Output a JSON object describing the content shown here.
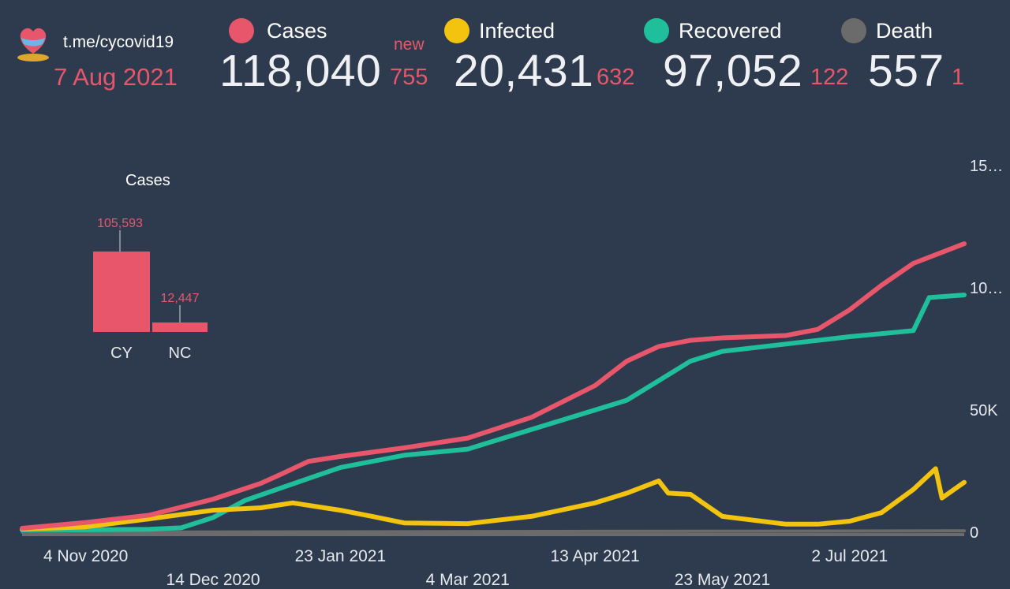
{
  "header": {
    "link": "t.me/cycovid19",
    "date": "7 Aug 2021",
    "new_label": "new",
    "stats": [
      {
        "name": "Cases",
        "total": "118,040",
        "new": "755",
        "color": "#e8566b"
      },
      {
        "name": "Infected",
        "total": "20,431",
        "new": "632",
        "color": "#f2c40f"
      },
      {
        "name": "Recovered",
        "total": "97,052",
        "new": "122",
        "color": "#1fbf9c"
      },
      {
        "name": "Death",
        "total": "557",
        "new": "1",
        "color": "#6b6b6b"
      }
    ]
  },
  "logo": {
    "icon": "heart-logo-icon",
    "colors": [
      "#e8566b",
      "#67b7e8",
      "#f0b429"
    ]
  },
  "colors": {
    "background": "#2e3b4e",
    "accent": "#e8566b",
    "text": "#e6e9ee"
  },
  "chart_data": [
    {
      "type": "bar",
      "title": "Cases",
      "categories": [
        "CY",
        "NC"
      ],
      "values": [
        105593,
        12447
      ],
      "value_labels": [
        "105,593",
        "12,447"
      ],
      "color": "#e8566b"
    },
    {
      "type": "line",
      "x_ticks": [
        "4 Nov 2020",
        "14 Dec 2020",
        "23 Jan 2021",
        "4 Mar 2021",
        "13 Apr 2021",
        "23 May 2021",
        "2 Jul 2021"
      ],
      "y_ticks": [
        "0",
        "50K",
        "10…",
        "15…"
      ],
      "y_tick_values": [
        0,
        50000,
        100000,
        150000
      ],
      "ylim": [
        0,
        150000
      ],
      "grid": false,
      "x_date_range": [
        "2020-10-15",
        "2021-08-07"
      ],
      "series": [
        {
          "name": "Cases",
          "color": "#e8566b",
          "points": [
            [
              "2020-10-15",
              1600
            ],
            [
              "2020-11-04",
              4000
            ],
            [
              "2020-11-24",
              7000
            ],
            [
              "2020-12-14",
              13500
            ],
            [
              "2020-12-29",
              20000
            ],
            [
              "2021-01-04",
              23500
            ],
            [
              "2021-01-13",
              29000
            ],
            [
              "2021-01-23",
              31000
            ],
            [
              "2021-02-12",
              34500
            ],
            [
              "2021-03-04",
              38500
            ],
            [
              "2021-03-24",
              47000
            ],
            [
              "2021-04-13",
              60000
            ],
            [
              "2021-04-23",
              70000
            ],
            [
              "2021-05-03",
              76000
            ],
            [
              "2021-05-13",
              78500
            ],
            [
              "2021-05-23",
              79500
            ],
            [
              "2021-06-12",
              80500
            ],
            [
              "2021-06-22",
              83000
            ],
            [
              "2021-07-02",
              91000
            ],
            [
              "2021-07-12",
              101000
            ],
            [
              "2021-07-22",
              110000
            ],
            [
              "2021-08-07",
              118040
            ]
          ]
        },
        {
          "name": "Infected",
          "color": "#f2c40f",
          "points": [
            [
              "2020-10-15",
              1300
            ],
            [
              "2020-11-04",
              2200
            ],
            [
              "2020-11-24",
              5500
            ],
            [
              "2020-12-14",
              9000
            ],
            [
              "2020-12-29",
              10000
            ],
            [
              "2021-01-08",
              12000
            ],
            [
              "2021-01-23",
              9000
            ],
            [
              "2021-02-02",
              6500
            ],
            [
              "2021-02-12",
              3800
            ],
            [
              "2021-03-04",
              3500
            ],
            [
              "2021-03-24",
              6500
            ],
            [
              "2021-04-13",
              12000
            ],
            [
              "2021-04-23",
              16000
            ],
            [
              "2021-05-03",
              21000
            ],
            [
              "2021-05-06",
              16000
            ],
            [
              "2021-05-13",
              15500
            ],
            [
              "2021-05-23",
              6500
            ],
            [
              "2021-06-12",
              3300
            ],
            [
              "2021-06-22",
              3300
            ],
            [
              "2021-07-02",
              4500
            ],
            [
              "2021-07-12",
              8000
            ],
            [
              "2021-07-22",
              17500
            ],
            [
              "2021-07-29",
              26000
            ],
            [
              "2021-07-31",
              14000
            ],
            [
              "2021-08-07",
              20431
            ]
          ]
        },
        {
          "name": "Recovered",
          "color": "#1fbf9c",
          "points": [
            [
              "2020-10-15",
              1000
            ],
            [
              "2020-11-04",
              1000
            ],
            [
              "2020-11-24",
              1200
            ],
            [
              "2020-12-04",
              1800
            ],
            [
              "2020-12-14",
              6000
            ],
            [
              "2020-12-24",
              13000
            ],
            [
              "2021-01-13",
              22000
            ],
            [
              "2021-01-23",
              26500
            ],
            [
              "2021-02-12",
              31500
            ],
            [
              "2021-03-04",
              34000
            ],
            [
              "2021-03-24",
              42000
            ],
            [
              "2021-04-13",
              50000
            ],
            [
              "2021-04-23",
              54000
            ],
            [
              "2021-05-03",
              62000
            ],
            [
              "2021-05-13",
              70000
            ],
            [
              "2021-05-23",
              74000
            ],
            [
              "2021-06-12",
              77000
            ],
            [
              "2021-07-02",
              80000
            ],
            [
              "2021-07-22",
              82500
            ],
            [
              "2021-07-27",
              96000
            ],
            [
              "2021-08-07",
              97052
            ]
          ]
        },
        {
          "name": "Death",
          "color": "#6b6b6b",
          "points": [
            [
              "2020-10-15",
              25
            ],
            [
              "2020-11-04",
              30
            ],
            [
              "2021-01-23",
              150
            ],
            [
              "2021-04-13",
              350
            ],
            [
              "2021-08-07",
              557
            ]
          ]
        }
      ]
    }
  ]
}
